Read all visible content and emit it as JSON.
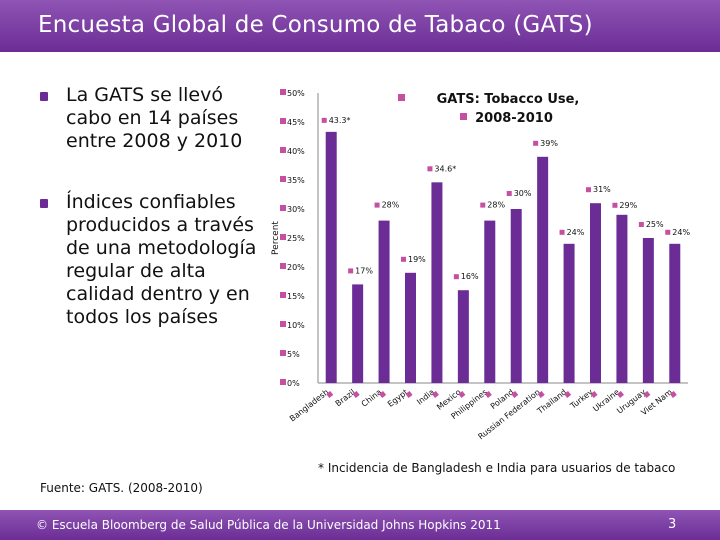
{
  "slide": {
    "title": "Encuesta Global de Consumo de Tabaco (GATS)",
    "bullets": [
      "La GATS se llevó cabo en 14 países entre 2008 y 2010",
      "Índices confiables producidos a través de una metodología regular de alta calidad dentro y en todos los países"
    ],
    "footnote": "* Incidencia de Bangladesh e India para usuarios de tabaco",
    "source": "Fuente: GATS. (2008-2010)",
    "copyright": "© Escuela Bloomberg de Salud Pública de la Universidad Johns Hopkins 2011",
    "page_number": "3"
  },
  "colors": {
    "accent": "#6b2d95",
    "bar": "#6b2d95",
    "label_marker": "#c54fa1"
  },
  "chart_data": {
    "type": "bar",
    "title": "GATS: Tobacco Use, 2008-2010",
    "title_line1": "GATS: Tobacco Use,",
    "title_line2": "2008-2010",
    "ylabel": "Percent",
    "xlabel": "",
    "ylim": [
      0,
      50
    ],
    "yticks": [
      0,
      5,
      10,
      15,
      20,
      25,
      30,
      35,
      40,
      45,
      50
    ],
    "ytick_labels": [
      "0%",
      "5%",
      "10%",
      "15%",
      "20%",
      "25%",
      "30%",
      "35%",
      "40%",
      "45%",
      "50%"
    ],
    "categories": [
      "Bangladesh",
      "Brazil",
      "China",
      "Egypt",
      "India",
      "Mexico",
      "Philippines",
      "Poland",
      "Russian Federation",
      "Thailand",
      "Turkey",
      "Ukraine",
      "Uruguay",
      "Viet Nam"
    ],
    "values": [
      43.3,
      17,
      28,
      19,
      34.6,
      16,
      28,
      30,
      39,
      24,
      31,
      29,
      25,
      24
    ],
    "data_labels": [
      "43.3*",
      "17%",
      "28%",
      "19%",
      "34.6*",
      "16%",
      "28%",
      "30%",
      "39%",
      "24%",
      "31%",
      "29%",
      "25%",
      "24%"
    ],
    "grid": false,
    "legend": "none"
  }
}
